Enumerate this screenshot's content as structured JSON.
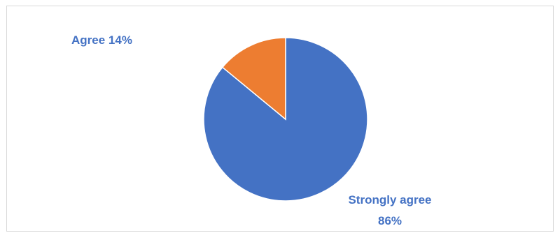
{
  "chart_data": {
    "type": "pie",
    "title": "",
    "start_angle_deg": 0,
    "direction": "clockwise",
    "slices": [
      {
        "label": "Strongly agree",
        "value": 86,
        "value_label": "86%",
        "color": "#4472C4"
      },
      {
        "label": "Agree",
        "value": 14,
        "value_label": "14%",
        "color": "#ED7D31"
      }
    ]
  }
}
